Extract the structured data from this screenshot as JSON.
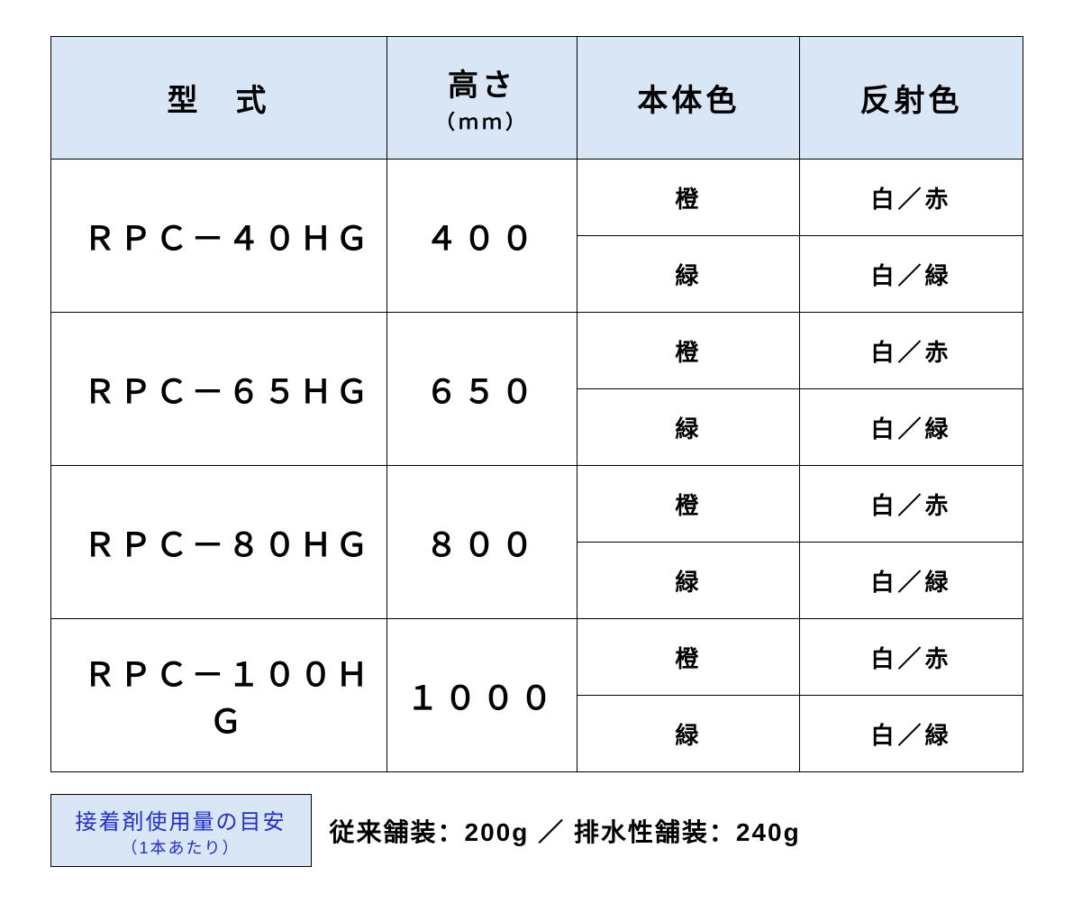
{
  "theme": {
    "header_bg": "#d9e6f5",
    "border": "#000000",
    "text": "#000000",
    "info_text_color": "#2030d0"
  },
  "columns": {
    "model": {
      "label": "型　式"
    },
    "height": {
      "label": "高さ",
      "sublabel": "（ｍｍ）"
    },
    "body": {
      "label": "本体色"
    },
    "refl": {
      "label": "反射色"
    }
  },
  "rows": [
    {
      "model": "ＲＰＣ－４０ＨＧ",
      "height": "４００",
      "variants": [
        {
          "body": "橙",
          "refl": "白／赤"
        },
        {
          "body": "緑",
          "refl": "白／緑"
        }
      ]
    },
    {
      "model": "ＲＰＣ－６５ＨＧ",
      "height": "６５０",
      "variants": [
        {
          "body": "橙",
          "refl": "白／赤"
        },
        {
          "body": "緑",
          "refl": "白／緑"
        }
      ]
    },
    {
      "model": "ＲＰＣ－８０ＨＧ",
      "height": "８００",
      "variants": [
        {
          "body": "橙",
          "refl": "白／赤"
        },
        {
          "body": "緑",
          "refl": "白／緑"
        }
      ]
    },
    {
      "model": "ＲＰＣ－１００ＨＧ",
      "height": "１０００",
      "variants": [
        {
          "body": "橙",
          "refl": "白／赤"
        },
        {
          "body": "緑",
          "refl": "白／緑"
        }
      ]
    }
  ],
  "info": {
    "box_main": "接着剤使用量の目安",
    "box_sub": "（1本あたり）",
    "text": "従来舗装：200g ／ 排水性舗装：240g"
  }
}
